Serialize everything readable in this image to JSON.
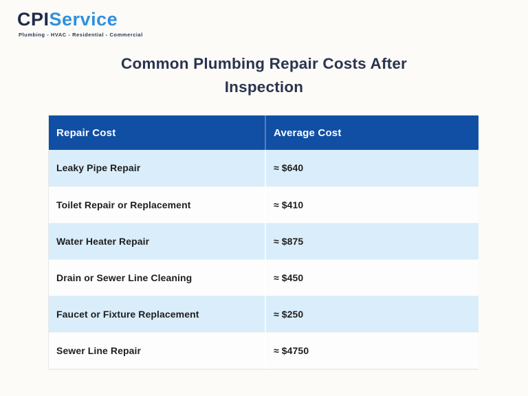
{
  "logo": {
    "name_primary": "CPI",
    "name_secondary": "Service",
    "tagline": "Plumbing - HVAC - Residential - Commercial"
  },
  "title": {
    "full": "Common Plumbing Repair Costs After Inspection",
    "line1": "Common Plumbing Repair Costs After",
    "line2": "Inspection"
  },
  "table": {
    "headers": [
      "Repair Cost",
      "Average Cost"
    ],
    "rows": [
      {
        "repair": "Leaky Pipe Repair",
        "cost": "≈ $640"
      },
      {
        "repair": "Toilet Repair or Replacement",
        "cost": "≈ $410"
      },
      {
        "repair": "Water Heater Repair",
        "cost": "≈ $875"
      },
      {
        "repair": "Drain or Sewer Line Cleaning",
        "cost": "≈ $450"
      },
      {
        "repair": "Faucet or Fixture Replacement",
        "cost": "≈ $250"
      },
      {
        "repair": "Sewer Line Repair",
        "cost": "≈ $4750"
      }
    ]
  },
  "chart_data": {
    "type": "table",
    "title": "Common Plumbing Repair Costs After Inspection",
    "columns": [
      "Repair Cost",
      "Average Cost"
    ],
    "rows": [
      [
        "Leaky Pipe Repair",
        "≈ $640"
      ],
      [
        "Toilet Repair or Replacement",
        "≈ $410"
      ],
      [
        "Water Heater Repair",
        "≈ $875"
      ],
      [
        "Drain or Sewer Line Cleaning",
        "≈ $450"
      ],
      [
        "Faucet or Fixture Replacement",
        "≈ $250"
      ],
      [
        "Sewer Line Repair",
        "≈ $4750"
      ]
    ],
    "values_numeric_usd": [
      640,
      410,
      875,
      450,
      250,
      4750
    ]
  },
  "colors": {
    "header_bg": "#114fa4",
    "row_alt_bg": "#d9edfa",
    "row_bg": "#fdfdfd",
    "title_text": "#2a344f",
    "logo_primary": "#1e2a49",
    "logo_secondary": "#2e90dd",
    "page_bg": "#fcfbf8"
  }
}
